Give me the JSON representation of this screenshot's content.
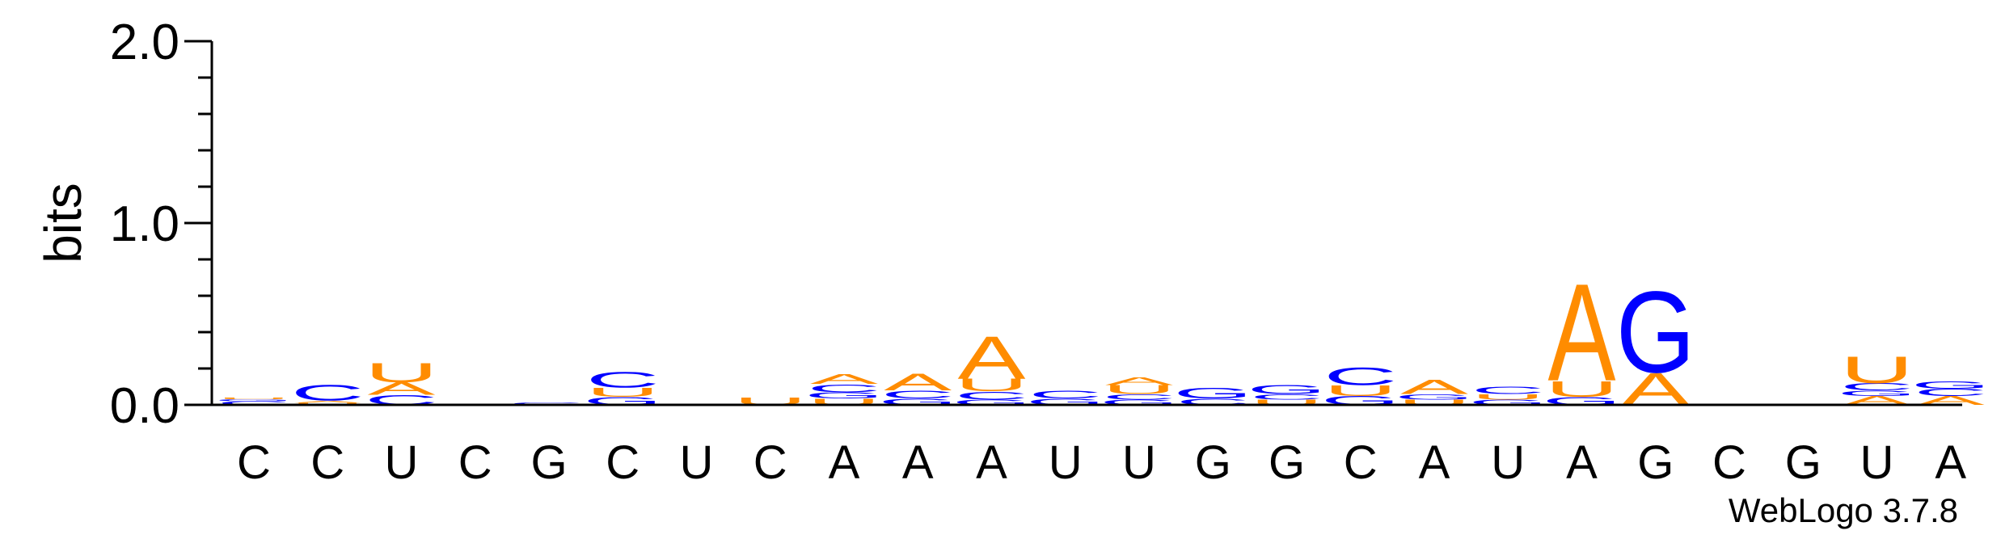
{
  "chart_data": {
    "type": "sequence-logo",
    "ylabel": "bits",
    "ylim": [
      0,
      2
    ],
    "yticks": [
      "0.0",
      "1.0",
      "2.0"
    ],
    "positions": [
      "C",
      "C",
      "U",
      "C",
      "G",
      "C",
      "U",
      "C",
      "A",
      "A",
      "A",
      "U",
      "U",
      "G",
      "G",
      "C",
      "A",
      "U",
      "A",
      "G",
      "C",
      "G",
      "U",
      "A"
    ],
    "stacks": [
      [
        [
          "C",
          0.02
        ],
        [
          "G",
          0.012
        ],
        [
          "U",
          0.008
        ]
      ],
      [
        [
          "U",
          0.012
        ],
        [
          "A",
          0.012
        ],
        [
          "C",
          0.09
        ]
      ],
      [
        [
          "C",
          0.055
        ],
        [
          "A",
          0.07
        ],
        [
          "U",
          0.11
        ]
      ],
      [],
      [
        [
          "G",
          0.015
        ]
      ],
      [
        [
          "G",
          0.045
        ],
        [
          "U",
          0.05
        ],
        [
          "C",
          0.09
        ]
      ],
      [],
      [
        [
          "U",
          0.04
        ]
      ],
      [
        [
          "U",
          0.035
        ],
        [
          "G",
          0.035
        ],
        [
          "C",
          0.045
        ],
        [
          "A",
          0.055
        ]
      ],
      [
        [
          "G",
          0.035
        ],
        [
          "C",
          0.045
        ],
        [
          "A",
          0.095
        ]
      ],
      [
        [
          "G",
          0.03
        ],
        [
          "C",
          0.045
        ],
        [
          "U",
          0.07
        ],
        [
          "A",
          0.24
        ]
      ],
      [
        [
          "G",
          0.035
        ],
        [
          "C",
          0.045
        ]
      ],
      [
        [
          "G",
          0.03
        ],
        [
          "C",
          0.03
        ],
        [
          "U",
          0.05
        ],
        [
          "A",
          0.045
        ]
      ],
      [
        [
          "C",
          0.035
        ],
        [
          "G",
          0.06
        ]
      ],
      [
        [
          "U",
          0.03
        ],
        [
          "C",
          0.03
        ],
        [
          "G",
          0.05
        ]
      ],
      [
        [
          "G",
          0.05
        ],
        [
          "U",
          0.06
        ],
        [
          "C",
          0.1
        ]
      ],
      [
        [
          "U",
          0.03
        ],
        [
          "G",
          0.03
        ],
        [
          "A",
          0.08
        ]
      ],
      [
        [
          "G",
          0.03
        ],
        [
          "U",
          0.03
        ],
        [
          "C",
          0.04
        ]
      ],
      [
        [
          "G",
          0.045
        ],
        [
          "U",
          0.09
        ],
        [
          "A",
          0.55
        ]
      ],
      [
        [
          "A",
          0.18
        ],
        [
          "G",
          0.46
        ]
      ],
      [],
      [],
      [
        [
          "A",
          0.05
        ],
        [
          "G",
          0.03
        ],
        [
          "C",
          0.04
        ],
        [
          "U",
          0.15
        ]
      ],
      [
        [
          "A",
          0.05
        ],
        [
          "C",
          0.04
        ],
        [
          "G",
          0.04
        ]
      ]
    ],
    "colors": {
      "A": "#ff8c00",
      "U": "#ff8c00",
      "C": "#0000ff",
      "G": "#0000ff"
    },
    "footer": "WebLogo 3.7.8"
  }
}
